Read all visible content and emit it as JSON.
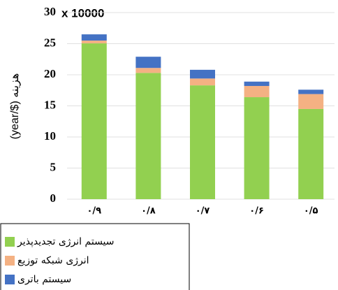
{
  "chart_data": {
    "type": "stacked_bar",
    "y_label": "هزینه ($/year)",
    "annotation": "x 10000",
    "categories": [
      "۰/۹",
      "۰/۸",
      "۰/۷",
      "۰/۶",
      "۰/۵"
    ],
    "series": [
      {
        "name": "سیستم انرژی تجدیدپذیر",
        "color": "#92d050",
        "values": [
          25.05,
          20.3,
          18.3,
          16.4,
          14.5
        ]
      },
      {
        "name": "انرژی شبکه توزیع",
        "color": "#f4b183",
        "values": [
          0.45,
          0.8,
          1.1,
          1.8,
          2.4
        ]
      },
      {
        "name": "سیستم باتری",
        "color": "#4472c4",
        "values": [
          1.0,
          1.8,
          1.4,
          0.7,
          0.7
        ]
      }
    ],
    "ylim": [
      0,
      30
    ],
    "yticks": [
      0,
      5,
      10,
      15,
      20,
      25,
      30
    ],
    "grid": true,
    "legend": "bottom-left"
  }
}
